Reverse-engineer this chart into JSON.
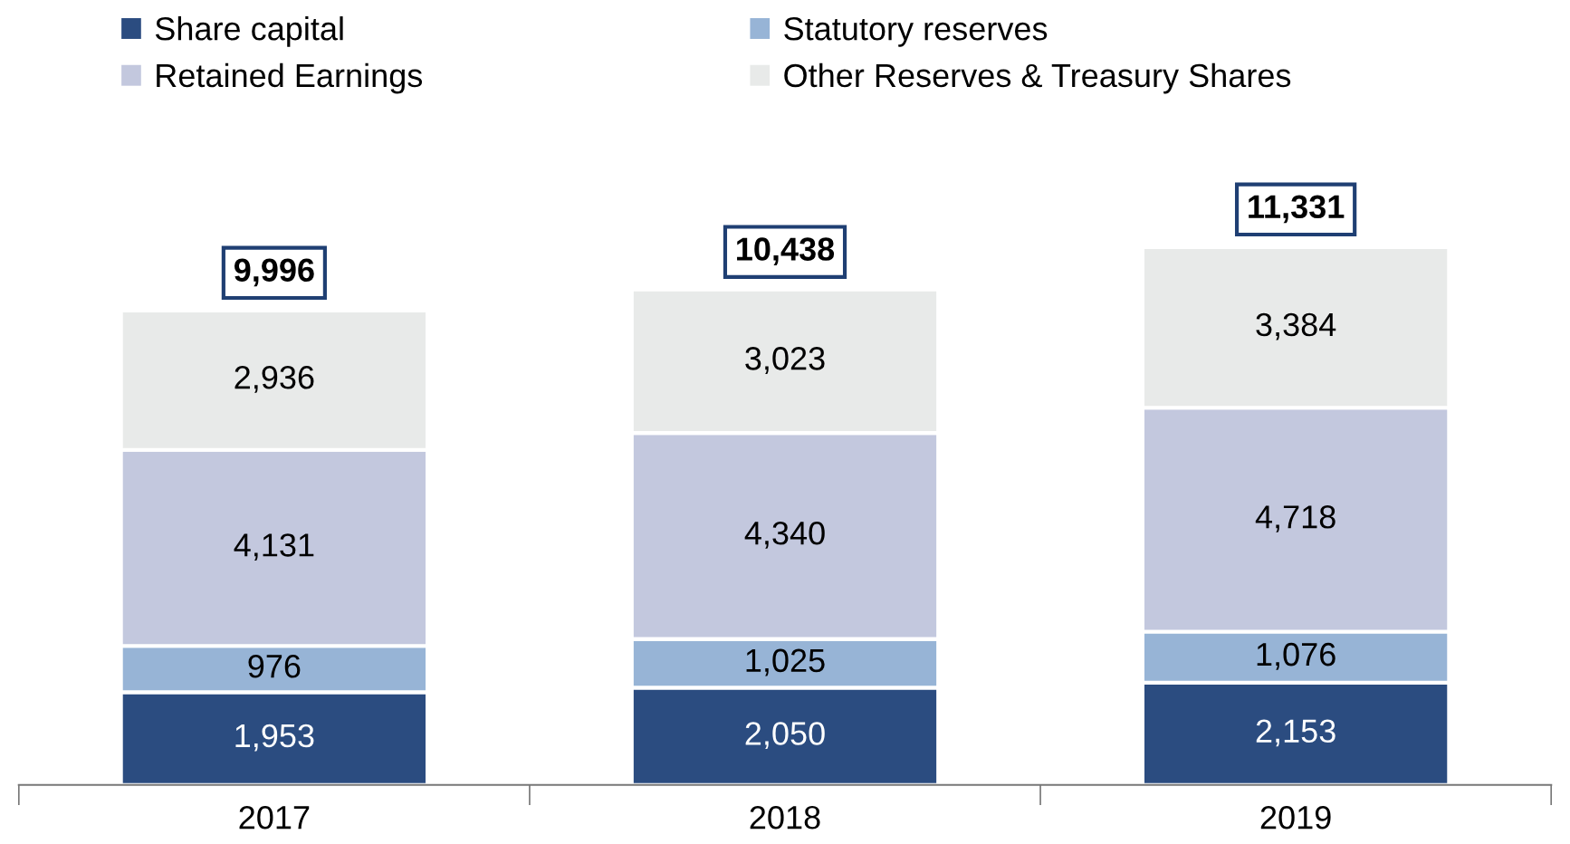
{
  "chart_data": {
    "type": "bar",
    "stacked": true,
    "categories": [
      "2017",
      "2018",
      "2019"
    ],
    "series": [
      {
        "name": "Share capital",
        "color": "#2b4c80",
        "values": [
          1953,
          2050,
          2153
        ],
        "value_labels": [
          "1,953",
          "2,050",
          "2,153"
        ]
      },
      {
        "name": "Statutory reserves",
        "color": "#97b4d6",
        "values": [
          976,
          1025,
          1076
        ],
        "value_labels": [
          "976",
          "1,025",
          "1,076"
        ]
      },
      {
        "name": "Retained Earnings",
        "color": "#c3c8de",
        "values": [
          4131,
          4340,
          4718
        ],
        "value_labels": [
          "4,131",
          "4,340",
          "4,718"
        ]
      },
      {
        "name": "Other Reserves & Treasury Shares",
        "color": "#e8eae9",
        "values": [
          2936,
          3023,
          3384
        ],
        "value_labels": [
          "2,936",
          "3,023",
          "3,384"
        ]
      }
    ],
    "totals": [
      "9,996",
      "10,438",
      "11,331"
    ],
    "legend": "top"
  }
}
